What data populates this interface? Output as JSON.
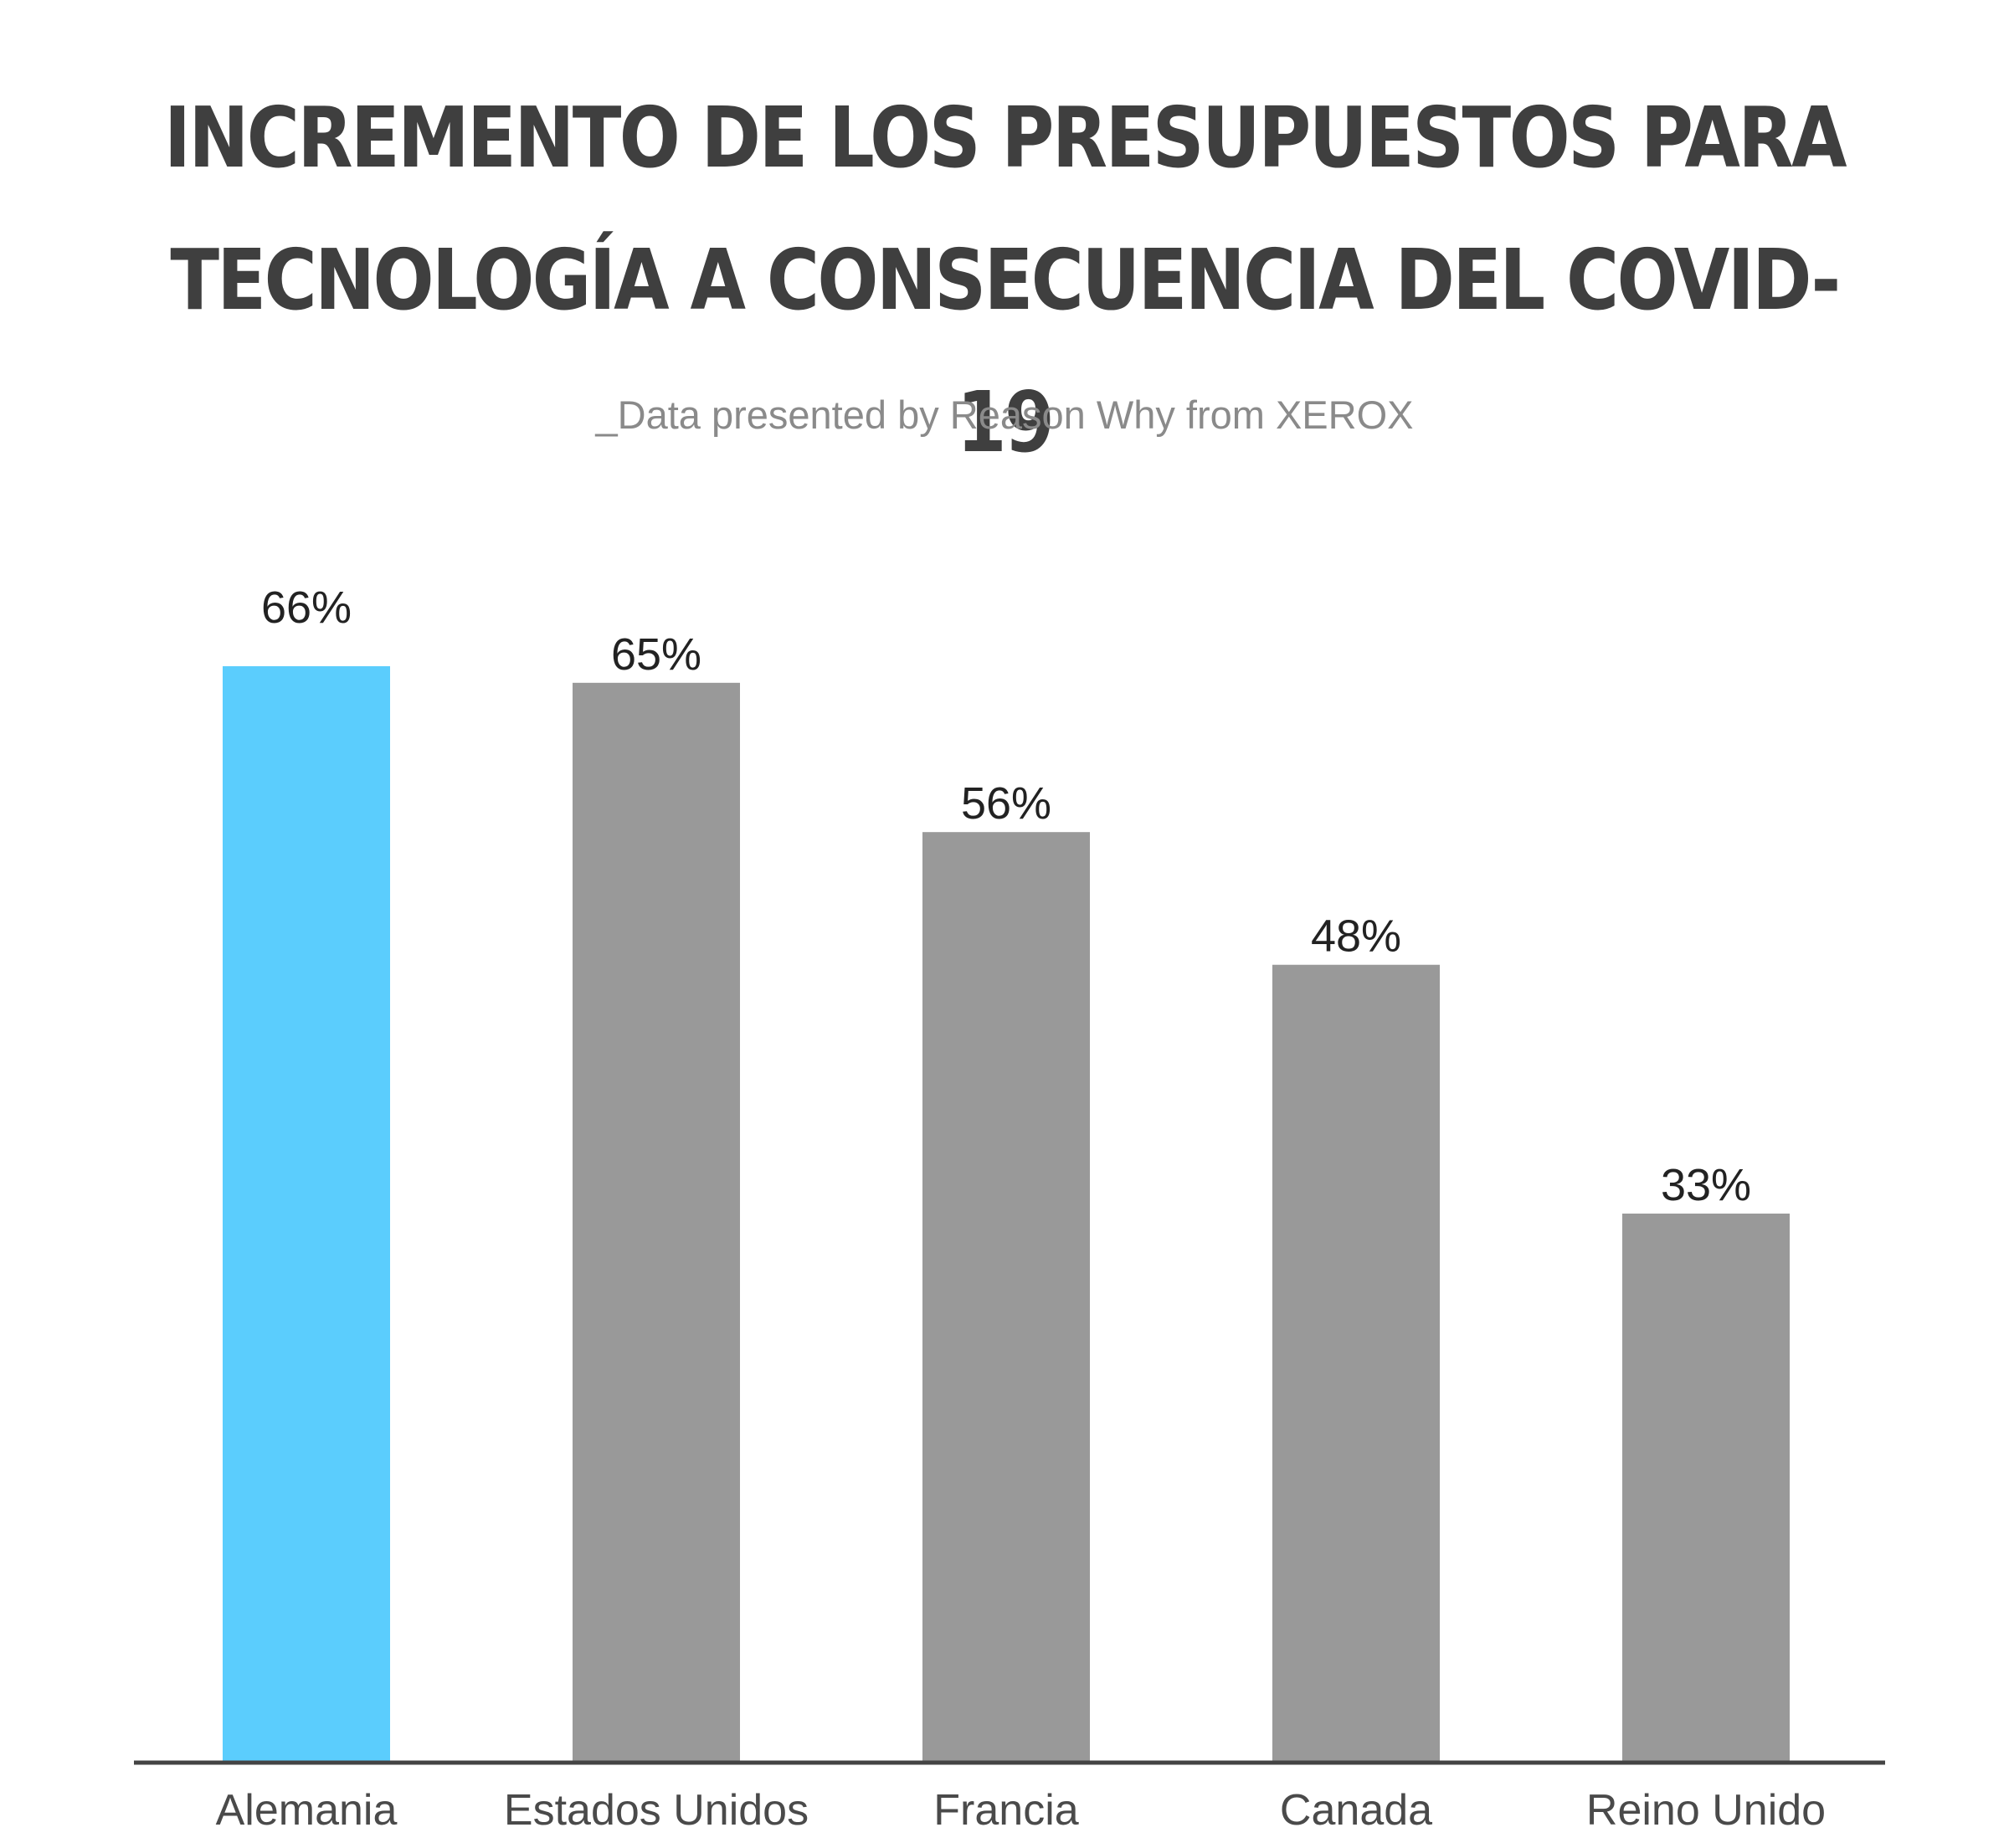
{
  "chart_data": {
    "type": "bar",
    "title_lines": [
      "INCREMENTO DE LOS PRESUPUESTOS PARA",
      "TECNOLOGÍA A CONSECUENCIA DEL COVID-19"
    ],
    "subtitle": "_Data presented by Reason Why from XEROX",
    "categories": [
      "Alemania",
      "Estados Unidos",
      "Francia",
      "Canada",
      "Reino Unido"
    ],
    "values": [
      66,
      65,
      56,
      48,
      33
    ],
    "value_labels": [
      "66%",
      "65%",
      "56%",
      "48%",
      "33%"
    ],
    "highlight_index": 0,
    "colors": {
      "highlight": "#5bcdfd",
      "bar": "#999999",
      "axis": "#444444"
    },
    "ylim": [
      0,
      66
    ],
    "grid": false
  }
}
